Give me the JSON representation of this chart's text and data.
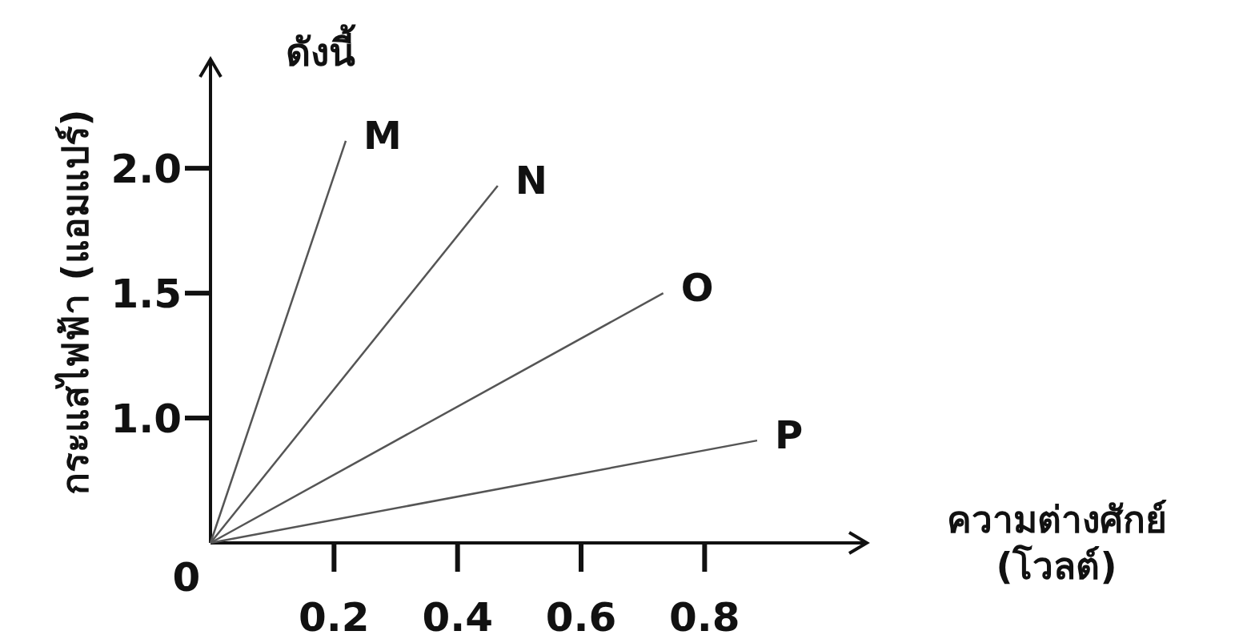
{
  "chart_data": {
    "type": "line",
    "title": "ดังนี้",
    "ylabel": "กระแสไฟฟ้า (แอมแปร์)",
    "xlabel": "ความต่างศักย์ (โวลต์)",
    "xlim": [
      0,
      1.06
    ],
    "ylim": [
      0.5,
      2.43
    ],
    "xticks": [
      0.2,
      0.4,
      0.6,
      0.8
    ],
    "yticks": [
      {
        "value": 1.0,
        "label": "1.0"
      },
      {
        "value": 1.5,
        "label": "1.5"
      },
      {
        "value": 2.0,
        "label": "2.0"
      }
    ],
    "series": [
      {
        "name": "M",
        "color": "#555555",
        "x": [
          0,
          0.219
        ],
        "values": [
          0.5,
          2.11
        ]
      },
      {
        "name": "N",
        "color": "#555555",
        "x": [
          0,
          0.465
        ],
        "values": [
          0.5,
          1.93
        ]
      },
      {
        "name": "O",
        "color": "#555555",
        "x": [
          0,
          0.733
        ],
        "values": [
          0.5,
          1.5
        ]
      },
      {
        "name": "P",
        "color": "#555555",
        "x": [
          0,
          0.885
        ],
        "values": [
          0.5,
          0.91
        ]
      }
    ],
    "annotations": [
      "0"
    ],
    "legend": false
  }
}
